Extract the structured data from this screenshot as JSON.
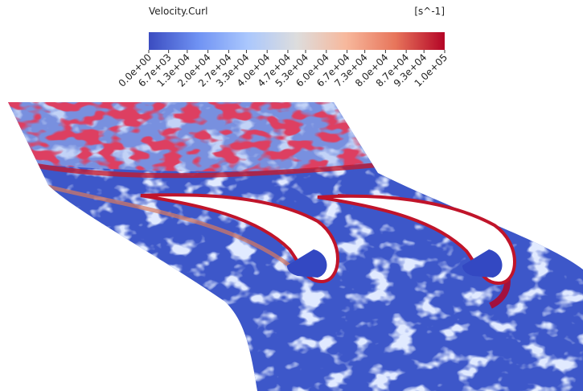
{
  "colorbar": {
    "title": "Velocity.Curl",
    "unit": "[s^-1]",
    "range": [
      0,
      100000
    ],
    "colormap": [
      "#3b4cc0",
      "#6f92f3",
      "#aac7fd",
      "#dddddd",
      "#f7b89c",
      "#e7755b",
      "#b40426"
    ],
    "ticks": [
      {
        "value": 0,
        "label": "0.0e+00"
      },
      {
        "value": 6700,
        "label": "6.7e+03"
      },
      {
        "value": 13000,
        "label": "1.3e+04"
      },
      {
        "value": 20000,
        "label": "2.0e+04"
      },
      {
        "value": 27000,
        "label": "2.7e+04"
      },
      {
        "value": 33000,
        "label": "3.3e+04"
      },
      {
        "value": 40000,
        "label": "4.0e+04"
      },
      {
        "value": 47000,
        "label": "4.7e+04"
      },
      {
        "value": 53000,
        "label": "5.3e+04"
      },
      {
        "value": 60000,
        "label": "6.0e+04"
      },
      {
        "value": 67000,
        "label": "6.7e+04"
      },
      {
        "value": 73000,
        "label": "7.3e+04"
      },
      {
        "value": 80000,
        "label": "8.0e+04"
      },
      {
        "value": 87000,
        "label": "8.7e+04"
      },
      {
        "value": 93000,
        "label": "9.3e+04"
      },
      {
        "value": 100000,
        "label": "1.0e+05"
      }
    ]
  }
}
